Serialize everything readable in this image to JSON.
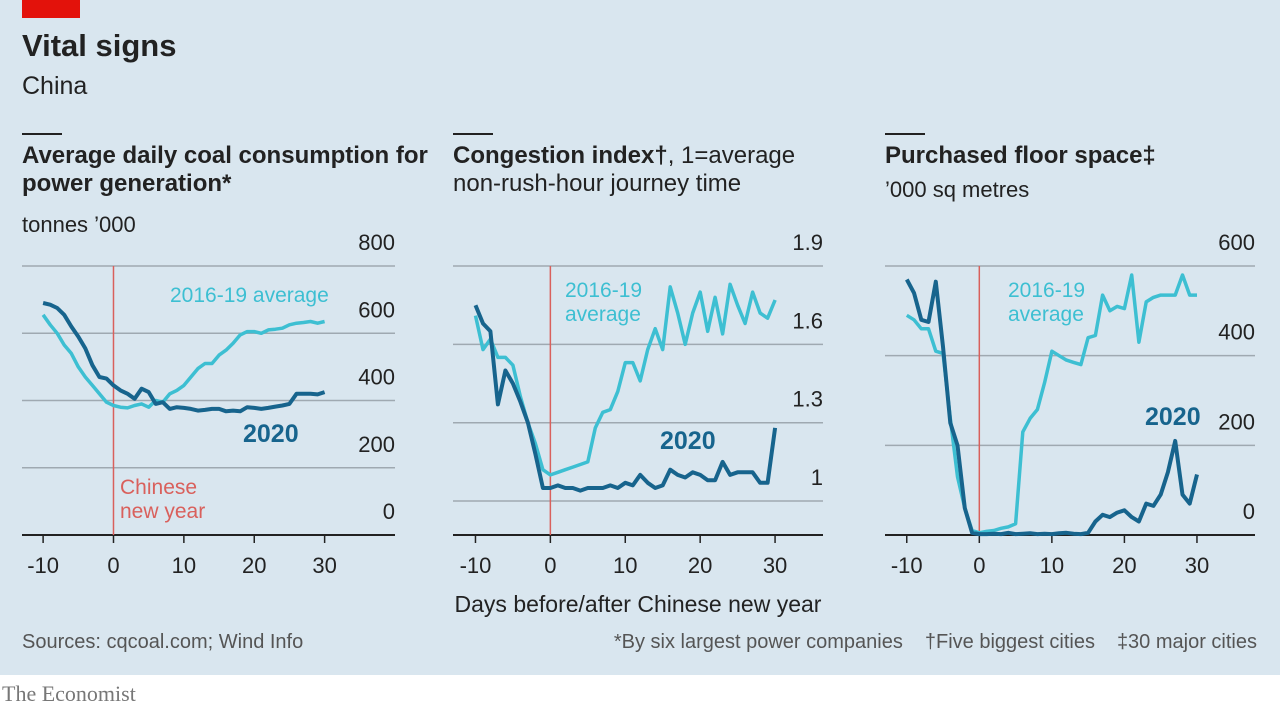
{
  "header": {
    "title": "Vital signs",
    "subtitle": "China"
  },
  "chart_data": [
    {
      "type": "line",
      "title": "Average daily coal consumption for power generation*",
      "subtitle": "tonnes ’000",
      "annotation": "Chinese new year",
      "vline": 0,
      "vline_color": "#d9605c",
      "xlim": [
        -13,
        40
      ],
      "xticks": [
        -10,
        0,
        10,
        20,
        30
      ],
      "ylim": [
        0,
        800
      ],
      "yticks": [
        0,
        200,
        400,
        600,
        800
      ],
      "grid": true,
      "x": [
        -10,
        -9,
        -8,
        -7,
        -6,
        -5,
        -4,
        -3,
        -2,
        -1,
        0,
        1,
        2,
        3,
        4,
        5,
        6,
        7,
        8,
        9,
        10,
        11,
        12,
        13,
        14,
        15,
        16,
        17,
        18,
        19,
        20,
        21,
        22,
        23,
        24,
        25,
        26,
        27,
        28,
        29,
        30
      ],
      "series": [
        {
          "name": "2016-19 average",
          "color": "#3dbfd2",
          "values": [
            655,
            625,
            600,
            565,
            540,
            500,
            470,
            445,
            420,
            395,
            385,
            380,
            378,
            385,
            390,
            380,
            400,
            395,
            420,
            430,
            445,
            470,
            495,
            510,
            510,
            535,
            550,
            570,
            595,
            605,
            605,
            600,
            610,
            612,
            615,
            625,
            630,
            632,
            635,
            630,
            635
          ]
        },
        {
          "name": "2020",
          "color": "#17648d",
          "values": [
            690,
            685,
            675,
            655,
            620,
            590,
            555,
            505,
            470,
            465,
            445,
            430,
            420,
            405,
            435,
            425,
            390,
            395,
            375,
            380,
            378,
            375,
            370,
            372,
            375,
            375,
            368,
            370,
            368,
            380,
            378,
            375,
            378,
            382,
            385,
            390,
            420,
            420,
            420,
            418,
            425
          ]
        }
      ]
    },
    {
      "type": "line",
      "title": "Congestion index†",
      "subtitle": ", 1=average non-rush-hour journey time",
      "xlabel": "Days before/after Chinese new year",
      "vline": 0,
      "vline_color": "#d9605c",
      "xlim": [
        -13,
        36.4
      ],
      "xticks": [
        -10,
        0,
        10,
        20,
        30
      ],
      "ylim": [
        0.87,
        1.9
      ],
      "yticks": [
        1.0,
        1.3,
        1.6,
        1.9
      ],
      "grid": true,
      "x": [
        -10,
        -9,
        -8,
        -7,
        -6,
        -5,
        -4,
        -3,
        -2,
        -1,
        0,
        1,
        2,
        3,
        4,
        5,
        6,
        7,
        8,
        9,
        10,
        11,
        12,
        13,
        14,
        15,
        16,
        17,
        18,
        19,
        20,
        21,
        22,
        23,
        24,
        25,
        26,
        27,
        28,
        29,
        30
      ],
      "series": [
        {
          "name": "2016-19 average",
          "color": "#3dbfd2",
          "values": [
            1.71,
            1.58,
            1.62,
            1.55,
            1.55,
            1.52,
            1.4,
            1.3,
            1.22,
            1.12,
            1.1,
            1.11,
            1.12,
            1.13,
            1.14,
            1.15,
            1.28,
            1.34,
            1.35,
            1.42,
            1.53,
            1.53,
            1.46,
            1.58,
            1.66,
            1.58,
            1.82,
            1.72,
            1.6,
            1.72,
            1.8,
            1.65,
            1.78,
            1.64,
            1.83,
            1.75,
            1.68,
            1.8,
            1.72,
            1.7,
            1.77
          ]
        },
        {
          "name": "2020",
          "color": "#17648d",
          "values": [
            1.75,
            1.68,
            1.65,
            1.37,
            1.5,
            1.45,
            1.38,
            1.3,
            1.18,
            1.05,
            1.05,
            1.06,
            1.05,
            1.05,
            1.04,
            1.05,
            1.05,
            1.05,
            1.06,
            1.05,
            1.07,
            1.06,
            1.1,
            1.07,
            1.05,
            1.06,
            1.12,
            1.1,
            1.09,
            1.11,
            1.1,
            1.08,
            1.08,
            1.15,
            1.1,
            1.11,
            1.11,
            1.11,
            1.07,
            1.07,
            1.28
          ]
        }
      ]
    },
    {
      "type": "line",
      "title": "Purchased floor space‡",
      "subtitle": "’000 sq metres",
      "vline": 0,
      "vline_color": "#d9605c",
      "xlim": [
        -13,
        38
      ],
      "xticks": [
        -10,
        0,
        10,
        20,
        30
      ],
      "ylim": [
        0,
        600
      ],
      "yticks": [
        0,
        200,
        400,
        600
      ],
      "grid": true,
      "x": [
        -10,
        -9,
        -8,
        -7,
        -6,
        -5,
        -4,
        -3,
        -2,
        -1,
        0,
        1,
        2,
        3,
        4,
        5,
        6,
        7,
        8,
        9,
        10,
        11,
        12,
        13,
        14,
        15,
        16,
        17,
        18,
        19,
        20,
        21,
        22,
        23,
        24,
        25,
        26,
        27,
        28,
        29,
        30
      ],
      "series": [
        {
          "name": "2016-19 average",
          "color": "#3dbfd2",
          "values": [
            490,
            480,
            460,
            460,
            410,
            405,
            260,
            130,
            60,
            10,
            5,
            8,
            10,
            15,
            18,
            25,
            230,
            260,
            280,
            340,
            410,
            400,
            390,
            385,
            380,
            440,
            445,
            535,
            500,
            510,
            505,
            580,
            430,
            520,
            530,
            535,
            535,
            535,
            580,
            535,
            535
          ]
        },
        {
          "name": "2020",
          "color": "#17648d",
          "values": [
            570,
            540,
            480,
            475,
            565,
            420,
            250,
            200,
            60,
            5,
            2,
            2,
            3,
            2,
            5,
            2,
            3,
            4,
            2,
            3,
            2,
            4,
            5,
            3,
            2,
            5,
            30,
            45,
            40,
            50,
            55,
            40,
            30,
            70,
            65,
            90,
            140,
            210,
            90,
            70,
            135
          ]
        }
      ]
    }
  ],
  "footer": {
    "source": "Sources: cqcoal.com; Wind Info",
    "notes": [
      "*By six largest power companies",
      "†Five biggest cities",
      "‡30 major cities"
    ],
    "brand": "The Economist"
  }
}
